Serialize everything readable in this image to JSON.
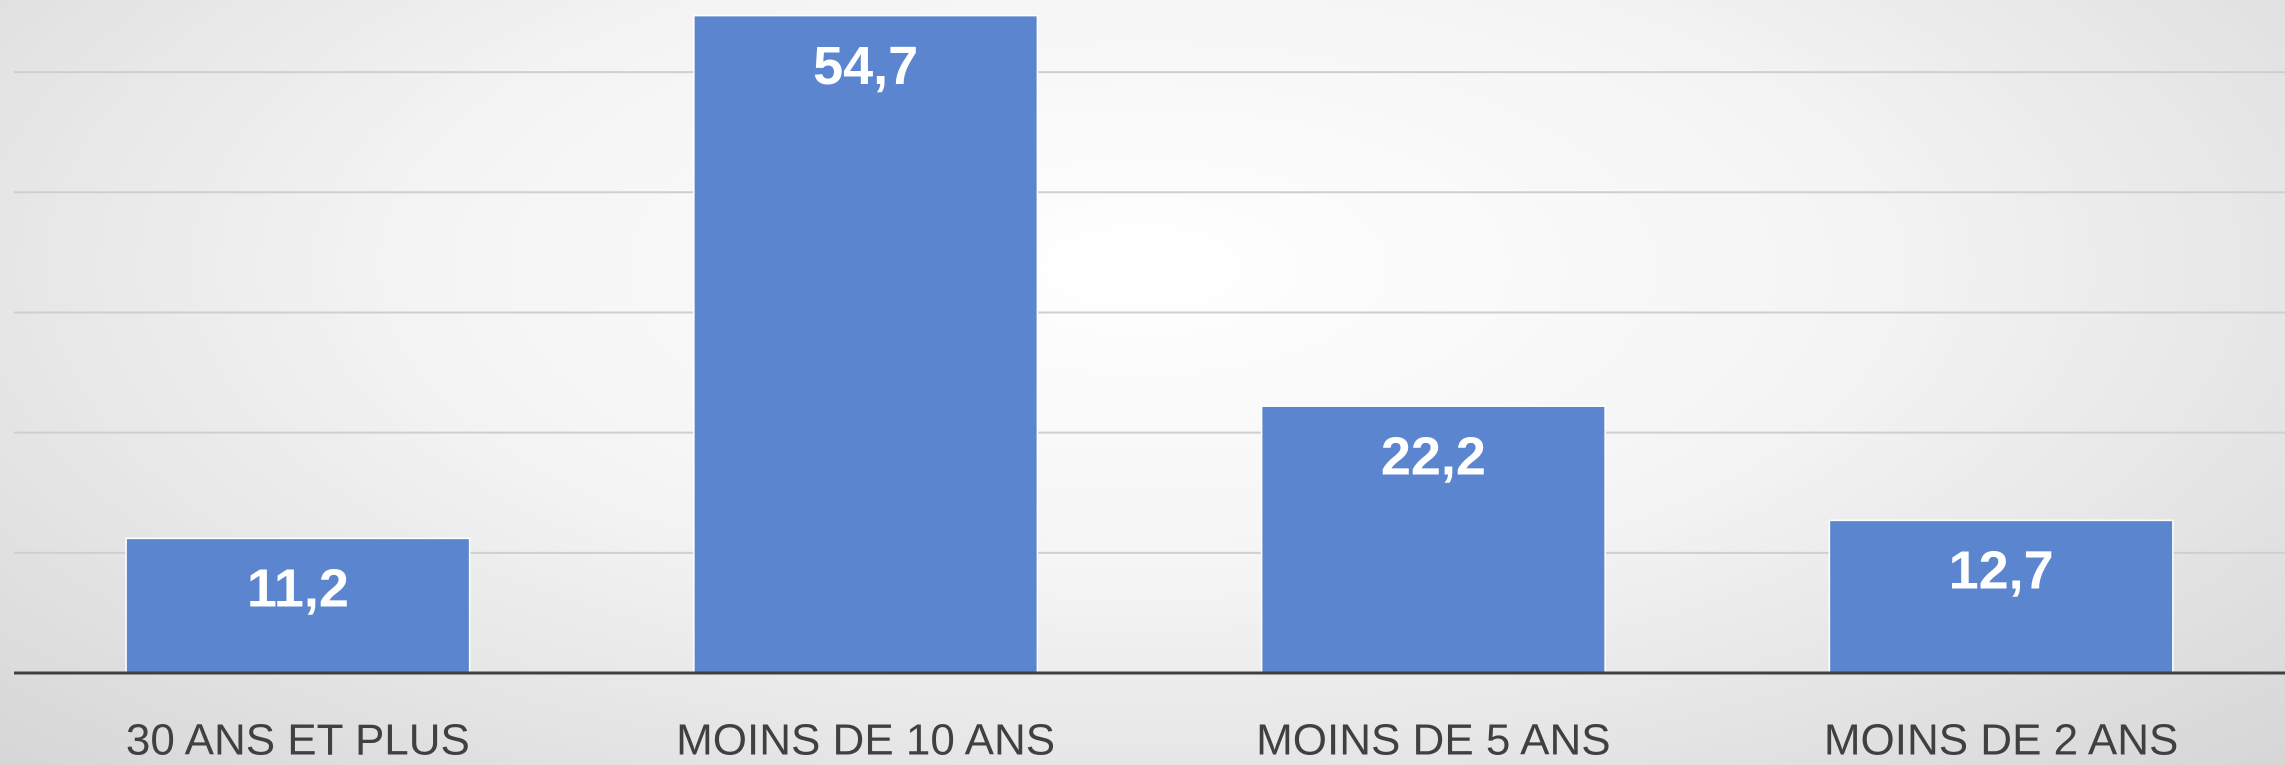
{
  "chart_data": {
    "type": "bar",
    "categories": [
      "30 ANS ET PLUS",
      "MOINS DE 10 ANS",
      "MOINS DE 5 ANS",
      "MOINS DE 2 ANS"
    ],
    "values": [
      11.2,
      54.7,
      22.2,
      12.7
    ],
    "value_labels": [
      "11,2",
      "54,7",
      "22,2",
      "12,7"
    ],
    "color": "#5b86cf",
    "ylim": [
      0,
      56
    ],
    "yticks": [
      0,
      10,
      20,
      30,
      40,
      50
    ],
    "grid": true
  }
}
